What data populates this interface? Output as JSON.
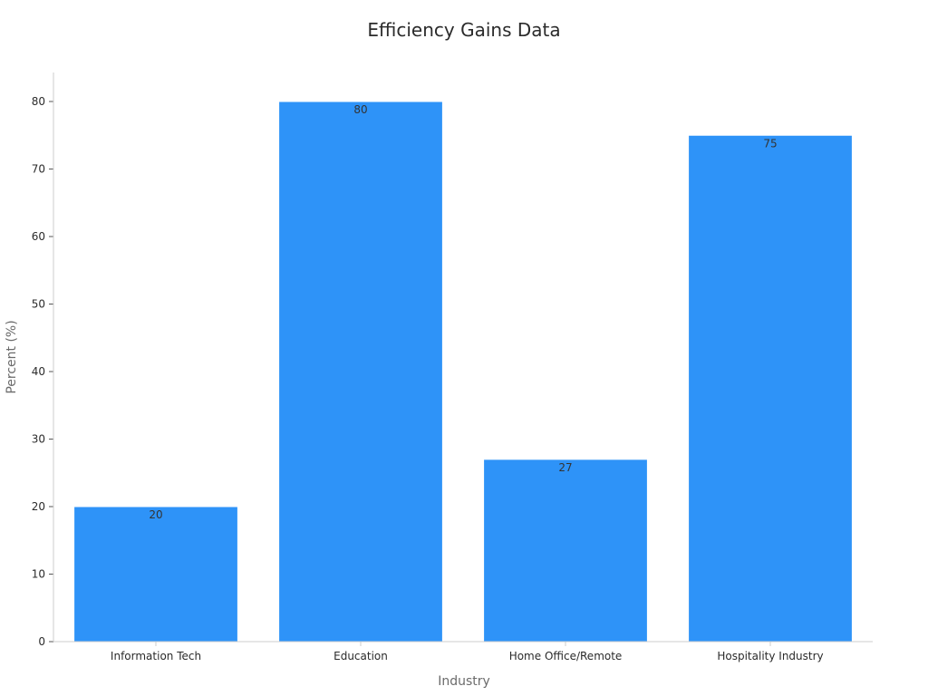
{
  "chart_data": {
    "type": "bar",
    "title": "Efficiency Gains Data",
    "xlabel": "Industry",
    "ylabel": "Percent (%)",
    "categories": [
      "Information Tech",
      "Education",
      "Home Office/Remote",
      "Hospitality Industry"
    ],
    "values": [
      20,
      80,
      27,
      75
    ],
    "ylim": [
      0,
      84
    ],
    "yticks": [
      "0",
      "10",
      "20",
      "30",
      "40",
      "50",
      "60",
      "70",
      "80"
    ],
    "grid": false,
    "bar_color": "#2e93f8",
    "axis_color": "#cccccc"
  }
}
